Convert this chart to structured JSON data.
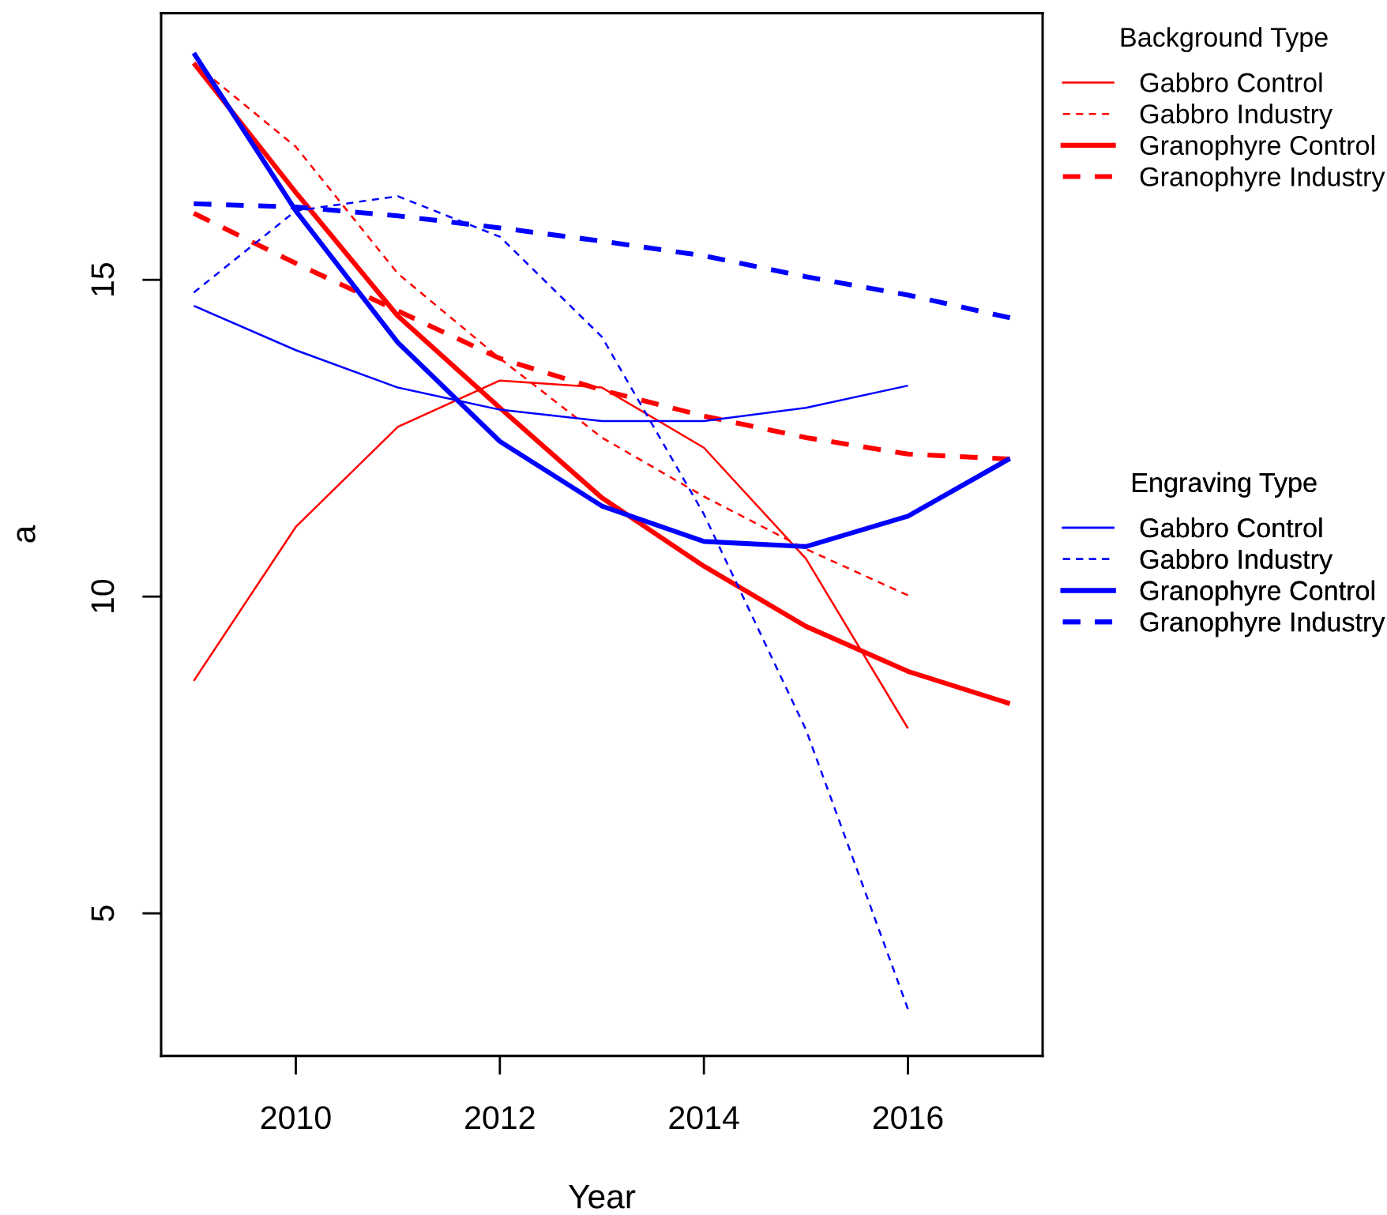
{
  "chart_data": {
    "type": "line",
    "xlabel": "Year",
    "ylabel": "a",
    "legend_title": [
      "Background Type",
      "Engraving Type"
    ],
    "legend": "right",
    "xlim": [
      2008.68,
      2017.32
    ],
    "ylim": [
      2.75,
      19.21
    ],
    "xticks": [
      2010,
      2012,
      2014,
      2016
    ],
    "yticks": [
      5,
      10,
      15
    ],
    "series": [
      {
        "name": "Gabbro Control",
        "color": "#ff0000",
        "line_style": "solid",
        "x": [
          2009,
          2010,
          2011,
          2012,
          2013,
          2014,
          2015,
          2016
        ],
        "values": [
          8.67,
          11.1,
          12.68,
          13.41,
          13.3,
          12.35,
          10.6,
          7.92
        ]
      },
      {
        "name": "Gabbro Industry",
        "color": "#ff0000",
        "line_style": "dashed",
        "x": [
          2009,
          2010,
          2011,
          2012,
          2013,
          2014,
          2015,
          2016
        ],
        "values": [
          18.42,
          17.1,
          15.1,
          13.76,
          12.51,
          11.58,
          10.75,
          10.02
        ]
      },
      {
        "name": "Granophyre Control",
        "color": "#ff0000",
        "line_style": "solid",
        "x": [
          2009,
          2010,
          2011,
          2012,
          2013,
          2014,
          2015,
          2016,
          2017
        ],
        "values": [
          18.42,
          16.38,
          14.43,
          12.98,
          11.56,
          10.48,
          9.53,
          8.82,
          8.31
        ]
      },
      {
        "name": "Granophyre Industry",
        "color": "#ff0000",
        "line_style": "dashed",
        "x": [
          2009,
          2010,
          2011,
          2012,
          2013,
          2014,
          2015,
          2016,
          2017
        ],
        "values": [
          16.05,
          15.26,
          14.51,
          13.76,
          13.26,
          12.85,
          12.51,
          12.25,
          12.17
        ]
      },
      {
        "name": "Gabbro Control",
        "color": "#0000ff",
        "line_style": "solid",
        "x": [
          2009,
          2010,
          2011,
          2012,
          2013,
          2014,
          2015,
          2016
        ],
        "values": [
          14.59,
          13.89,
          13.3,
          12.95,
          12.77,
          12.77,
          12.98,
          13.33
        ]
      },
      {
        "name": "Gabbro Industry",
        "color": "#0000ff",
        "line_style": "dashed",
        "x": [
          2009,
          2010,
          2011,
          2012,
          2013,
          2014,
          2015,
          2016
        ],
        "values": [
          14.8,
          16.09,
          16.32,
          15.68,
          14.1,
          11.3,
          7.9,
          3.49
        ]
      },
      {
        "name": "Granophyre Control",
        "color": "#0000ff",
        "line_style": "solid",
        "x": [
          2009,
          2010,
          2011,
          2012,
          2013,
          2014,
          2015,
          2016,
          2017
        ],
        "values": [
          18.58,
          16.09,
          14.01,
          12.45,
          11.43,
          10.87,
          10.79,
          11.27,
          12.18
        ]
      },
      {
        "name": "Granophyre Industry",
        "color": "#0000ff",
        "line_style": "dashed",
        "x": [
          2009,
          2010,
          2011,
          2012,
          2013,
          2014,
          2015,
          2016,
          2017
        ],
        "values": [
          16.2,
          16.15,
          16.01,
          15.82,
          15.61,
          15.38,
          15.05,
          14.76,
          14.4
        ]
      }
    ]
  }
}
